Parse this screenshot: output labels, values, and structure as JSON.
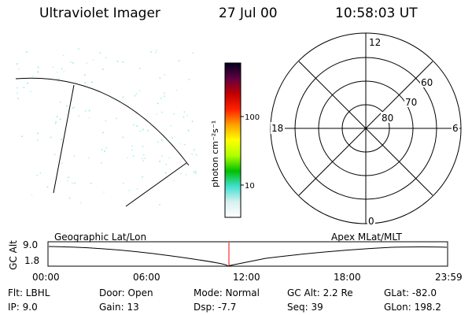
{
  "header": {
    "instrument": "Ultraviolet Imager",
    "date": "27 Jul 00",
    "time": "10:58:03 UT"
  },
  "colorbar": {
    "unit_label": "photon cm⁻²s⁻¹",
    "ticks": [
      "100",
      "10"
    ]
  },
  "polar_plot": {
    "mlt_labels": {
      "top": "12",
      "left": "18",
      "right": "6",
      "bottom": "0"
    },
    "lat_labels": [
      "60",
      "70",
      "80"
    ]
  },
  "timeline": {
    "left_title": "Geographic Lat/Lon",
    "right_title": "Apex MLat/MLT",
    "axis_label": "GC Alt",
    "y_max": "9.0",
    "y_min": "1.8",
    "x_ticks": [
      "00:00",
      "06:00",
      "12:00",
      "18:00",
      "23:59"
    ]
  },
  "status": {
    "filter": "Flt: LBHL",
    "ip": "IP:  9.0",
    "door": "Door: Open",
    "gain": "Gain: 13",
    "mode": "Mode: Normal",
    "dsp": "Dsp:   -7.7",
    "gc_alt": "GC Alt: 2.2 Re",
    "seq": "Seq: 39",
    "glat": "GLat: -82.0",
    "glon": "GLon: 198.2"
  },
  "colors": {
    "colorbar_stops": [
      "#ffffff",
      "#d8f0f0",
      "#40e0d0",
      "#00c000",
      "#b0ff00",
      "#ffff00",
      "#ffa000",
      "#ff2000",
      "#c00000",
      "#600040",
      "#000020"
    ],
    "noise_dots": "#66dddd",
    "current_time_marker": "#ff0000"
  }
}
